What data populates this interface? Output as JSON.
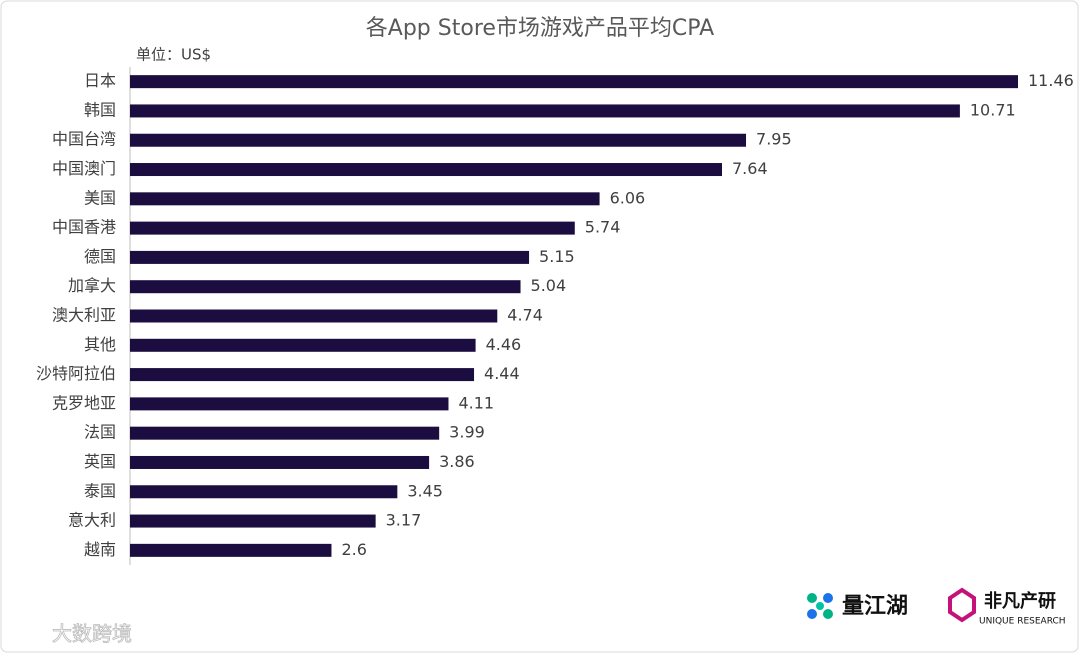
{
  "chart_data": {
    "type": "hbar",
    "title": "各App Store市场游戏产品平均CPA",
    "unit_label": "单位：US$",
    "categories": [
      "日本",
      "韩国",
      "中国台湾",
      "中国澳门",
      "美国",
      "中国香港",
      "德国",
      "加拿大",
      "澳大利亚",
      "其他",
      "沙特阿拉伯",
      "克罗地亚",
      "法国",
      "英国",
      "泰国",
      "意大利",
      "越南"
    ],
    "values": [
      11.46,
      10.71,
      7.95,
      7.64,
      6.06,
      5.74,
      5.15,
      5.04,
      4.74,
      4.46,
      4.44,
      4.11,
      3.99,
      3.86,
      3.45,
      3.17,
      2.6
    ],
    "color": "#1b0d3f"
  },
  "branding": {
    "logo_1": "量江湖",
    "logo_2": "非凡产研",
    "logo_2_sub": "UNIQUE RESEARCH",
    "watermark": "大数跨境"
  }
}
